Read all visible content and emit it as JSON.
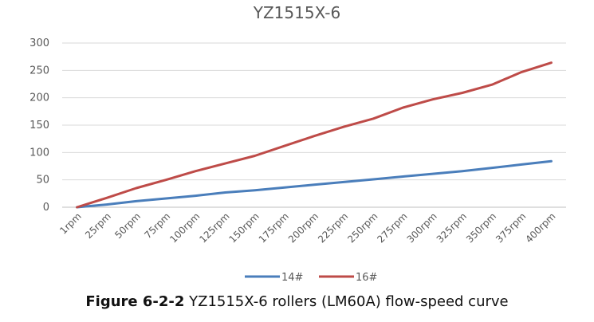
{
  "chart_data": {
    "type": "line",
    "title": "YZ1515X-6",
    "categories": [
      "1rpm",
      "25rpm",
      "50rpm",
      "75rpm",
      "100rpm",
      "125rpm",
      "150rpm",
      "175rpm",
      "200rpm",
      "225rpm",
      "250rpm",
      "275rpm",
      "300rpm",
      "325rpm",
      "350rpm",
      "375rpm",
      "400rpm"
    ],
    "series": [
      {
        "name": "14#",
        "color": "#4a7ebb",
        "values": [
          0,
          5,
          11,
          16,
          21,
          27,
          31,
          36,
          41,
          46,
          51,
          56,
          61,
          66,
          72,
          78,
          84
        ]
      },
      {
        "name": "16#",
        "color": "#be4b48",
        "values": [
          0,
          17,
          35,
          50,
          66,
          80,
          94,
          112,
          130,
          147,
          162,
          182,
          197,
          209,
          224,
          247,
          264
        ]
      }
    ],
    "yticks": [
      0,
      50,
      100,
      150,
      200,
      250,
      300
    ],
    "ylim": [
      0,
      300
    ],
    "xlabel": "",
    "ylabel": "",
    "grid": true,
    "legend": "bottom"
  },
  "caption": {
    "label": "Figure 6-2-2",
    "text": " YZ1515X-6 rollers (LM60A) flow-speed curve"
  }
}
